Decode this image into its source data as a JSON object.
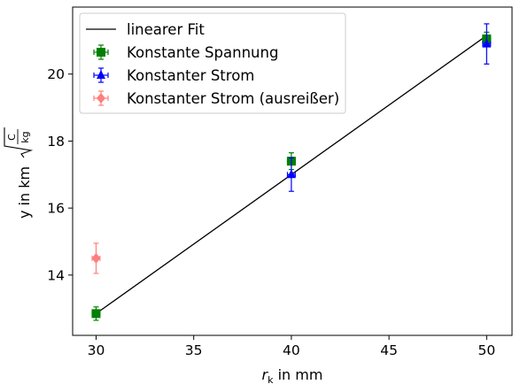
{
  "chart_data": {
    "type": "scatter",
    "xlabel": {
      "symbol": "r",
      "subscript": "k",
      "suffix": " in mm"
    },
    "ylabel": {
      "prefix": "y in km",
      "radicand_numerator": "C",
      "radicand_denominator": "kg"
    },
    "xlim": [
      28.8,
      51.3
    ],
    "ylim": [
      12.2,
      22.0
    ],
    "xticks": [
      30,
      35,
      40,
      45,
      50
    ],
    "yticks": [
      14,
      16,
      18,
      20
    ],
    "grid": false,
    "legend_position": "top-left",
    "series": [
      {
        "name": "linearer Fit",
        "kind": "line",
        "color": "#000000",
        "x": [
          30,
          50
        ],
        "y": [
          12.85,
          21.15
        ]
      },
      {
        "name": "Konstante Spannung",
        "kind": "errorbar",
        "marker": "square",
        "color": "#008000",
        "x": [
          30,
          40,
          50
        ],
        "y": [
          12.85,
          17.4,
          21.05
        ],
        "yerr": [
          0.2,
          0.25,
          0.2
        ],
        "xerr": [
          0.2,
          0.2,
          0.2
        ]
      },
      {
        "name": "Konstanter Strom",
        "kind": "errorbar",
        "marker": "triangle",
        "color": "#0000ff",
        "x": [
          40,
          50
        ],
        "y": [
          17.0,
          20.9
        ],
        "yerr": [
          0.5,
          0.6
        ],
        "xerr": [
          0.2,
          0.2
        ]
      },
      {
        "name": "Konstanter Strom (ausreißer)",
        "kind": "errorbar",
        "marker": "diamond",
        "color": "#ff0000",
        "opacity": 0.5,
        "x": [
          30
        ],
        "y": [
          14.5
        ],
        "yerr": [
          0.45
        ],
        "xerr": [
          0.2
        ]
      }
    ]
  }
}
